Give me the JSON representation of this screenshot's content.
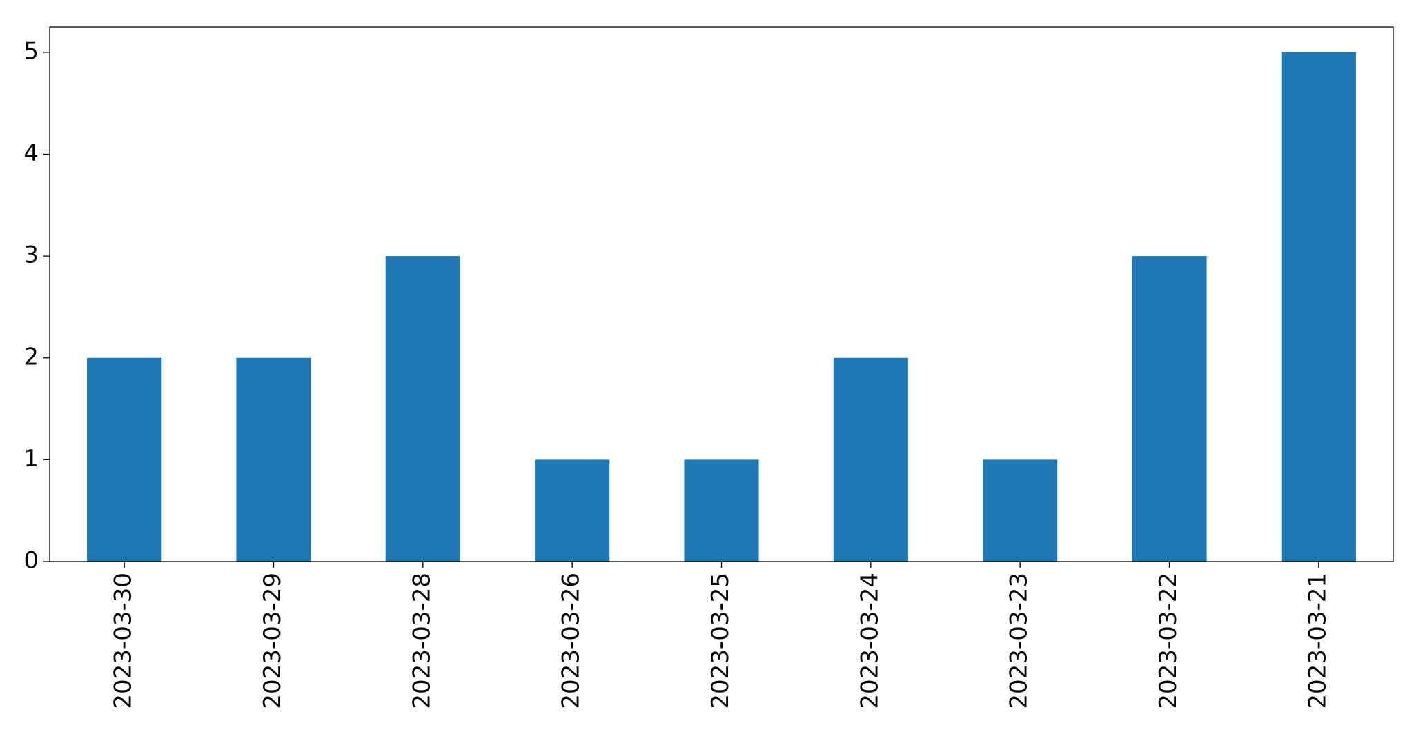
{
  "chart_data": {
    "type": "bar",
    "categories": [
      "2023-03-30",
      "2023-03-29",
      "2023-03-28",
      "2023-03-26",
      "2023-03-25",
      "2023-03-24",
      "2023-03-23",
      "2023-03-22",
      "2023-03-21"
    ],
    "values": [
      2,
      2,
      3,
      1,
      1,
      2,
      1,
      3,
      5
    ],
    "color": "#1f77b4",
    "ylim": [
      0,
      5.25
    ],
    "yticks": [
      0,
      1,
      2,
      3,
      4,
      5
    ],
    "grid": false
  }
}
